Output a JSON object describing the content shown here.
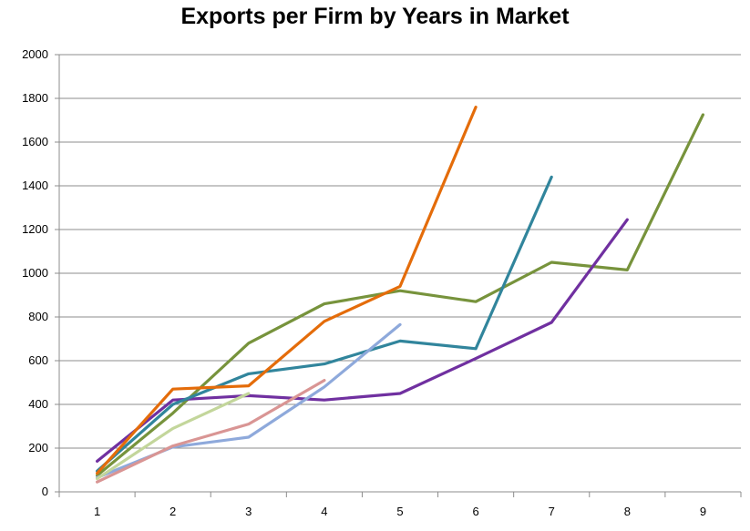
{
  "chart_data": {
    "type": "line",
    "title": "Exports per Firm by Years in Market",
    "xlabel": "",
    "ylabel": "",
    "categories": [
      "1",
      "2",
      "3",
      "4",
      "5",
      "6",
      "7",
      "8",
      "9"
    ],
    "yticks": [
      "0",
      "200",
      "400",
      "600",
      "800",
      "1000",
      "1200",
      "1400",
      "1600",
      "1800",
      "2000"
    ],
    "ylim": [
      0,
      2000
    ],
    "grid": true,
    "legend": "none",
    "series": [
      {
        "color": "#77933C",
        "values": [
          75,
          360,
          680,
          860,
          920,
          870,
          1050,
          1015,
          1725
        ]
      },
      {
        "color": "#7030A0",
        "values": [
          140,
          420,
          440,
          420,
          450,
          610,
          775,
          1245,
          null
        ]
      },
      {
        "color": "#31859C",
        "values": [
          95,
          400,
          540,
          585,
          690,
          655,
          1440,
          null,
          null
        ]
      },
      {
        "color": "#E46C0A",
        "values": [
          85,
          470,
          485,
          780,
          940,
          1760,
          null,
          null,
          null
        ]
      },
      {
        "color": "#8EA9DB",
        "values": [
          65,
          205,
          250,
          480,
          765,
          null,
          null,
          null,
          null
        ]
      },
      {
        "color": "#D99594",
        "values": [
          45,
          210,
          310,
          510,
          null,
          null,
          null,
          null,
          null
        ]
      },
      {
        "color": "#C3D69B",
        "values": [
          60,
          290,
          450,
          null,
          null,
          null,
          null,
          null,
          null
        ]
      }
    ]
  }
}
